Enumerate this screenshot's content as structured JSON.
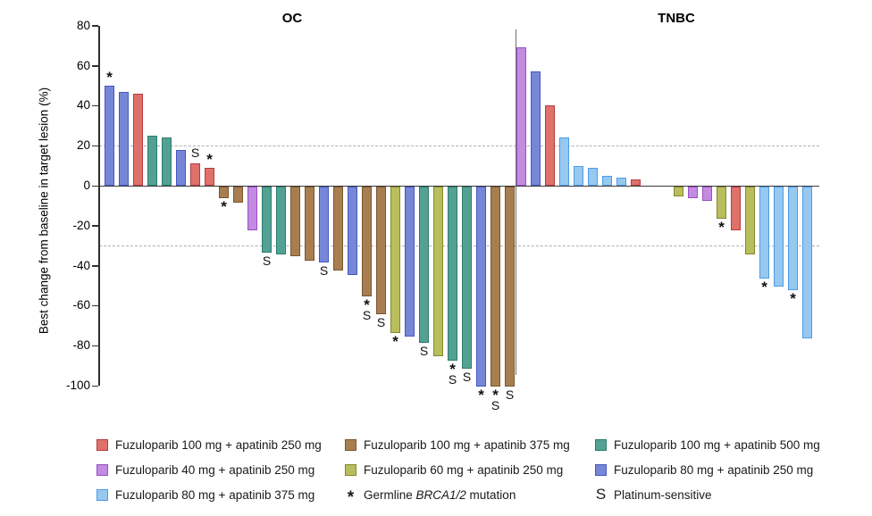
{
  "colors": {
    "f100a250": {
      "name": "Fuzuloparib 100 mg + apatinib 250 mg",
      "fill": "#E0716A",
      "edge": "#B43C41"
    },
    "f40a250": {
      "name": "Fuzuloparib 40 mg + apatinib 250 mg",
      "fill": "#C38BE1",
      "edge": "#9A4FC6"
    },
    "f80a375": {
      "name": "Fuzuloparib 80 mg + apatinib 375 mg",
      "fill": "#97C8F0",
      "edge": "#4C9BE8"
    },
    "f100a375": {
      "name": "Fuzuloparib 100 mg + apatinib 375 mg",
      "fill": "#A87E50",
      "edge": "#7A5532"
    },
    "f60a250": {
      "name": "Fuzuloparib 60 mg + apatinib 250 mg",
      "fill": "#B9BE5C",
      "edge": "#83882F"
    },
    "f100a500": {
      "name": "Fuzuloparib 100 mg + apatinib 500 mg",
      "fill": "#52A192",
      "edge": "#2E7C6E"
    },
    "f80a250": {
      "name": "Fuzuloparib 80 mg + apatinib 250 mg",
      "fill": "#7787D8",
      "edge": "#4556C0"
    }
  },
  "chart_data": {
    "type": "bar",
    "title": "",
    "ylabel": "Best change from baseline in target lesion (%)",
    "ylim": [
      -100,
      80
    ],
    "yticks": [
      80,
      60,
      40,
      20,
      0,
      -20,
      -40,
      -60,
      -80,
      -100
    ],
    "reference_lines": [
      20,
      -30
    ],
    "grid": false,
    "marker_legend": {
      "*": "Germline BRCA1/2 mutation",
      "S": "Platinum-sensitive"
    },
    "panels": [
      {
        "title": "OC",
        "bars": [
          {
            "value": 50,
            "group": "f80a250",
            "marks": [
              "*"
            ]
          },
          {
            "value": 47,
            "group": "f80a250",
            "marks": []
          },
          {
            "value": 46,
            "group": "f100a250",
            "marks": []
          },
          {
            "value": 25,
            "group": "f100a500",
            "marks": []
          },
          {
            "value": 24,
            "group": "f100a500",
            "marks": []
          },
          {
            "value": 18,
            "group": "f80a250",
            "marks": []
          },
          {
            "value": 11,
            "group": "f100a250",
            "marks": [
              "S"
            ]
          },
          {
            "value": 9,
            "group": "f100a250",
            "marks": [
              "*"
            ]
          },
          {
            "value": -6,
            "group": "f100a375",
            "marks": [
              "*"
            ]
          },
          {
            "value": -8,
            "group": "f100a375",
            "marks": []
          },
          {
            "value": -22,
            "group": "f40a250",
            "marks": []
          },
          {
            "value": -33,
            "group": "f100a500",
            "marks": [
              "S"
            ]
          },
          {
            "value": -34,
            "group": "f100a500",
            "marks": []
          },
          {
            "value": -35,
            "group": "f100a375",
            "marks": []
          },
          {
            "value": -37,
            "group": "f100a375",
            "marks": []
          },
          {
            "value": -38,
            "group": "f80a250",
            "marks": [
              "S"
            ]
          },
          {
            "value": -42,
            "group": "f100a375",
            "marks": []
          },
          {
            "value": -44,
            "group": "f80a250",
            "marks": []
          },
          {
            "value": -55,
            "group": "f100a375",
            "marks": [
              "*",
              "S"
            ]
          },
          {
            "value": -64,
            "group": "f100a375",
            "marks": [
              "S"
            ]
          },
          {
            "value": -73,
            "group": "f60a250",
            "marks": [
              "*"
            ]
          },
          {
            "value": -75,
            "group": "f80a250",
            "marks": []
          },
          {
            "value": -78,
            "group": "f100a500",
            "marks": [
              "S"
            ]
          },
          {
            "value": -85,
            "group": "f60a250",
            "marks": []
          },
          {
            "value": -87,
            "group": "f100a500",
            "marks": [
              "*",
              "S"
            ]
          },
          {
            "value": -91,
            "group": "f100a500",
            "marks": [
              "S"
            ]
          },
          {
            "value": -100,
            "group": "f80a250",
            "marks": [
              "*"
            ]
          },
          {
            "value": -100,
            "group": "f100a375",
            "marks": [
              "*",
              "S"
            ]
          },
          {
            "value": -100,
            "group": "f100a375",
            "marks": [
              "S"
            ]
          }
        ]
      },
      {
        "title": "TNBC",
        "bars": [
          {
            "value": 69,
            "group": "f40a250",
            "marks": []
          },
          {
            "value": 57,
            "group": "f80a250",
            "marks": []
          },
          {
            "value": 40,
            "group": "f100a250",
            "marks": []
          },
          {
            "value": 24,
            "group": "f80a375",
            "marks": []
          },
          {
            "value": 10,
            "group": "f80a375",
            "marks": []
          },
          {
            "value": 9,
            "group": "f80a375",
            "marks": []
          },
          {
            "value": 5,
            "group": "f80a375",
            "marks": []
          },
          {
            "value": 4,
            "group": "f80a375",
            "marks": []
          },
          {
            "value": 3,
            "group": "f100a250",
            "marks": []
          },
          {
            "value": 0,
            "group": null,
            "marks": []
          },
          {
            "value": 0,
            "group": null,
            "marks": []
          },
          {
            "value": -5,
            "group": "f60a250",
            "marks": []
          },
          {
            "value": -6,
            "group": "f40a250",
            "marks": []
          },
          {
            "value": -7,
            "group": "f40a250",
            "marks": []
          },
          {
            "value": -16,
            "group": "f60a250",
            "marks": [
              "*"
            ]
          },
          {
            "value": -22,
            "group": "f100a250",
            "marks": []
          },
          {
            "value": -34,
            "group": "f60a250",
            "marks": []
          },
          {
            "value": -46,
            "group": "f80a375",
            "marks": [
              "*"
            ]
          },
          {
            "value": -50,
            "group": "f80a375",
            "marks": []
          },
          {
            "value": -52,
            "group": "f80a375",
            "marks": [
              "*"
            ]
          },
          {
            "value": -76,
            "group": "f80a375",
            "marks": []
          }
        ]
      }
    ]
  },
  "legend": {
    "items": [
      {
        "type": "swatch",
        "key": "f100a250",
        "label": "Fuzuloparib 100 mg + apatinib 250 mg"
      },
      {
        "type": "swatch",
        "key": "f40a250",
        "label": "Fuzuloparib 40 mg + apatinib 250 mg"
      },
      {
        "type": "swatch",
        "key": "f80a375",
        "label": "Fuzuloparib 80 mg + apatinib 375 mg"
      },
      {
        "type": "swatch",
        "key": "f100a375",
        "label": "Fuzuloparib 100 mg + apatinib 375 mg"
      },
      {
        "type": "swatch",
        "key": "f60a250",
        "label": "Fuzuloparib 60 mg + apatinib 250 mg"
      },
      {
        "type": "symbol",
        "symbol": "*",
        "label_prefix": "Germline ",
        "label_italic": "BRCA1/2",
        "label_suffix": " mutation"
      },
      {
        "type": "swatch",
        "key": "f100a500",
        "label": "Fuzuloparib 100 mg + apatinib 500 mg"
      },
      {
        "type": "swatch",
        "key": "f80a250",
        "label": "Fuzuloparib 80 mg + apatinib 250 mg"
      },
      {
        "type": "symbol",
        "symbol": "S",
        "label": "Platinum-sensitive"
      }
    ]
  }
}
